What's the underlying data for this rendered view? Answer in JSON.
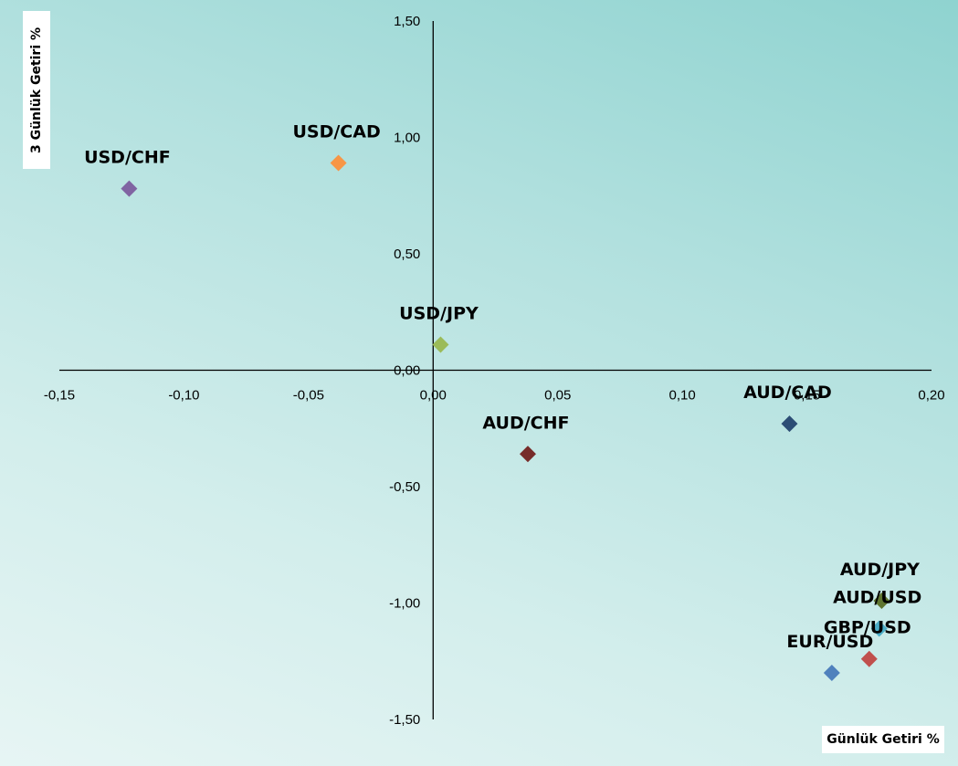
{
  "chart_data": {
    "type": "scatter",
    "title": "",
    "xlabel": "Günlük  Getiri %",
    "ylabel": "3 Günlük Getiri %",
    "xlim": [
      -0.15,
      0.2
    ],
    "ylim": [
      -1.5,
      1.5
    ],
    "x_ticks": [
      "-0,15",
      "-0,10",
      "-0,05",
      "0,00",
      "0,05",
      "0,10",
      "0,15",
      "0,20"
    ],
    "y_ticks": [
      "1,50",
      "1,00",
      "0,50",
      "0,00",
      "-0,50",
      "-1,00",
      "-1,50"
    ],
    "grid": false,
    "legend": "none",
    "points": [
      {
        "label": "USD/CHF",
        "x": -0.122,
        "y": 0.78,
        "color": "#8064a2"
      },
      {
        "label": "USD/CAD",
        "x": -0.038,
        "y": 0.89,
        "color": "#f79646"
      },
      {
        "label": "USD/JPY",
        "x": 0.003,
        "y": 0.11,
        "color": "#9bbb59"
      },
      {
        "label": "AUD/CHF",
        "x": 0.038,
        "y": -0.36,
        "color": "#772c2a"
      },
      {
        "label": "AUD/CAD",
        "x": 0.143,
        "y": -0.23,
        "color": "#2c4d75"
      },
      {
        "label": "AUD/JPY",
        "x": 0.18,
        "y": -0.99,
        "color": "#5f7530"
      },
      {
        "label": "AUD/USD",
        "x": 0.179,
        "y": -1.11,
        "color": "#4bacc6"
      },
      {
        "label": "GBP/USD",
        "x": 0.175,
        "y": -1.24,
        "color": "#c0504d"
      },
      {
        "label": "EUR/USD",
        "x": 0.16,
        "y": -1.3,
        "color": "#4f81bd"
      }
    ]
  }
}
